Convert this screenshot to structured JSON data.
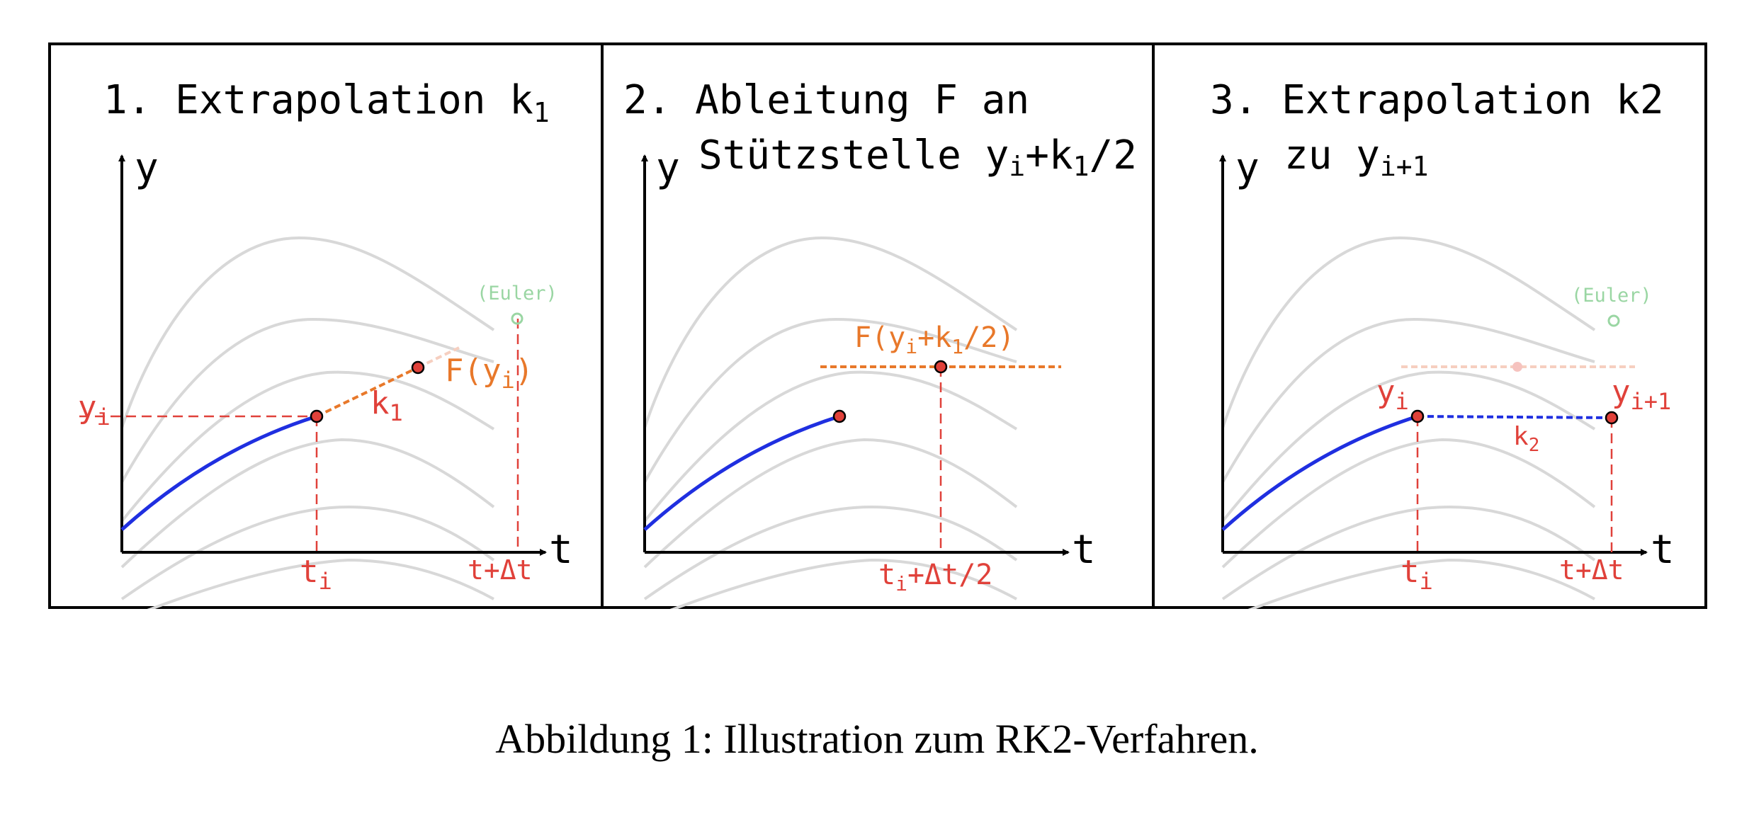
{
  "panels": [
    {
      "title_line1": "1. Extrapolation k",
      "title_line1_sub": "1",
      "y_axis": "y",
      "t_axis": "t",
      "label_yi": "y",
      "label_yi_sub": "i",
      "label_k": "k",
      "label_k_sub": "1",
      "label_F": "F(y",
      "label_F_sub": "i",
      "label_F_end": ")",
      "label_euler": "(Euler)",
      "label_ti": "t",
      "label_ti_sub": "i",
      "label_tdt": "t+Δt"
    },
    {
      "title_line1": "2. Ableitung F an",
      "title_line2": "Stützstelle y",
      "title_line2_sub": "i",
      "title_line2_mid": "+k",
      "title_line2_sub2": "1",
      "title_line2_end": "/2",
      "y_axis": "y",
      "t_axis": "t",
      "label_F": "F(y",
      "label_F_sub": "i",
      "label_F_mid": "+k",
      "label_F_sub2": "1",
      "label_F_end": "/2)",
      "label_t": "t",
      "label_t_sub": "i",
      "label_t_end": "+Δt/2"
    },
    {
      "title_line1": "3. Extrapolation k2",
      "title_line2": "zu y",
      "title_line2_sub": "i+1",
      "y_axis": "y",
      "t_axis": "t",
      "label_yi": "y",
      "label_yi_sub": "i",
      "label_yi1": "y",
      "label_yi1_sub": "i+1",
      "label_k": "k",
      "label_k_sub": "2",
      "label_euler": "(Euler)",
      "label_ti": "t",
      "label_ti_sub": "i",
      "label_tdt": "t+Δt"
    }
  ],
  "caption": "Abbildung 1: Illustration zum RK2-Verfahren.",
  "colors": {
    "red": "#e0413a",
    "orange": "#e8782a",
    "blue": "#1f2fe0",
    "grey_curves": "#d8d8d8",
    "euler_green": "#9ad6a3"
  }
}
